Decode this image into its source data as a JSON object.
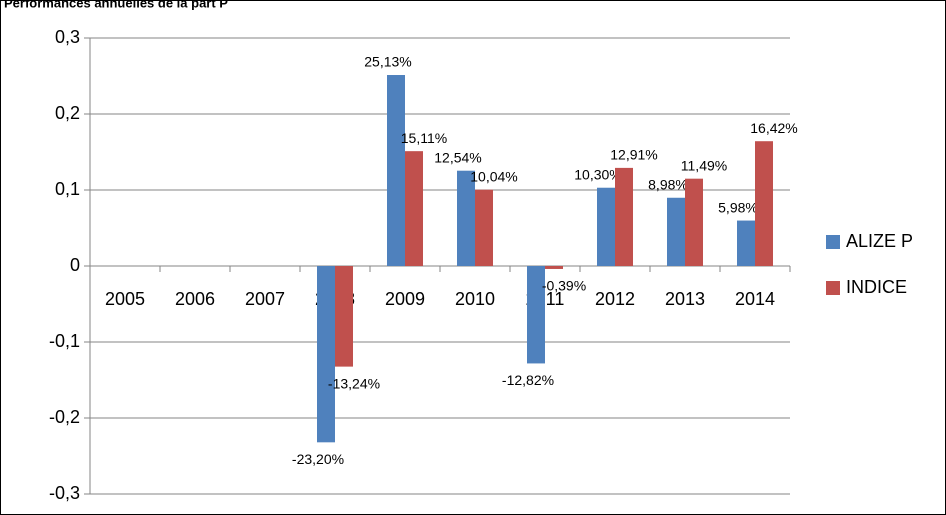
{
  "chart_data": {
    "type": "bar",
    "title": "Performances annuelles de la part P",
    "categories": [
      "2005",
      "2006",
      "2007",
      "2008",
      "2009",
      "2010",
      "2011",
      "2012",
      "2013",
      "2014"
    ],
    "series": [
      {
        "name": "ALIZE P",
        "color": "#4f81bd",
        "values": [
          null,
          null,
          null,
          -0.232,
          0.2513,
          0.1254,
          -0.1282,
          0.103,
          0.0898,
          0.0598
        ],
        "value_labels": [
          null,
          null,
          null,
          "-23,20%",
          "25,13%",
          "12,54%",
          "-12,82%",
          "10,30%",
          "8,98%",
          "5,98%"
        ]
      },
      {
        "name": "INDICE",
        "color": "#c0504d",
        "values": [
          null,
          null,
          null,
          -0.1324,
          0.1511,
          0.1004,
          -0.0039,
          0.1291,
          0.1149,
          0.1642
        ],
        "value_labels": [
          null,
          null,
          null,
          "-13,24%",
          "15,11%",
          "10,04%",
          "-0,39%",
          "12,91%",
          "11,49%",
          "16,42%"
        ]
      }
    ],
    "ylim": [
      -0.3,
      0.3
    ],
    "yticks": [
      {
        "value": 0.3,
        "label": "0,3"
      },
      {
        "value": 0.2,
        "label": "0,2"
      },
      {
        "value": 0.1,
        "label": "0,1"
      },
      0,
      {
        "value": -0.1,
        "label": "-0,1"
      },
      {
        "value": -0.2,
        "label": "-0,2"
      },
      {
        "value": -0.3,
        "label": "-0,3"
      }
    ],
    "grid": true,
    "legend": "right"
  }
}
